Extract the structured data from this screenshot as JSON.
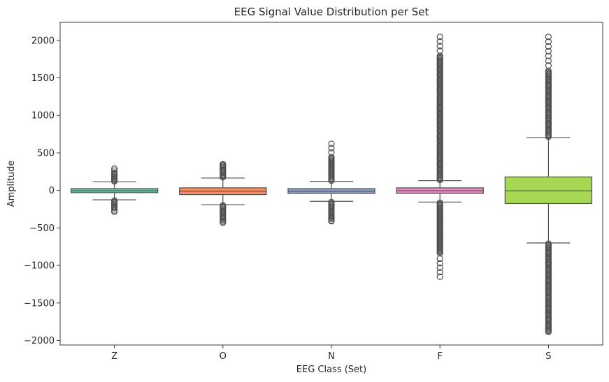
{
  "chart_data": {
    "type": "box",
    "title": "EEG Signal Value Distribution per Set",
    "xlabel": "EEG Class (Set)",
    "ylabel": "Amplitude",
    "ylim": [
      -2060,
      2240
    ],
    "yticks": [
      2000,
      1500,
      1000,
      500,
      0,
      -500,
      -1000,
      -1500,
      -2000
    ],
    "ytick_labels": [
      "2000",
      "1500",
      "1000",
      "500",
      "0",
      "−500",
      "−1000",
      "−1500",
      "−2000"
    ],
    "grid": false,
    "legend": "none",
    "categories": [
      "Z",
      "O",
      "N",
      "F",
      "S"
    ],
    "boxes": [
      {
        "category": "Z",
        "color": "#66c2a5",
        "q1": -30,
        "median": -5,
        "q3": 25,
        "whisker_low": -125,
        "whisker_high": 115,
        "outliers_high": {
          "from": 120,
          "to": 240,
          "max": 290
        },
        "outliers_low": {
          "from": -135,
          "to": -250,
          "min": -285
        }
      },
      {
        "category": "O",
        "color": "#fc8d62",
        "q1": -55,
        "median": -10,
        "q3": 35,
        "whisker_low": -190,
        "whisker_high": 165,
        "outliers_high": {
          "from": 175,
          "to": 330,
          "max": 350
        },
        "outliers_low": {
          "from": -200,
          "to": -400,
          "min": -430
        }
      },
      {
        "category": "N",
        "color": "#8da0cb",
        "q1": -40,
        "median": -10,
        "q3": 25,
        "whisker_low": -145,
        "whisker_high": 120,
        "outliers_high": {
          "from": 130,
          "to": 450,
          "max": 620
        },
        "outliers_low": {
          "from": -155,
          "to": -390,
          "min": -410
        }
      },
      {
        "category": "F",
        "color": "#e78ac3",
        "q1": -40,
        "median": -5,
        "q3": 35,
        "whisker_low": -155,
        "whisker_high": 130,
        "outliers_high": {
          "from": 140,
          "to": 1800,
          "max": 2047
        },
        "outliers_low": {
          "from": -165,
          "to": -850,
          "min": -1150
        }
      },
      {
        "category": "S",
        "color": "#a6d854",
        "q1": -175,
        "median": -5,
        "q3": 180,
        "whisker_low": -700,
        "whisker_high": 705,
        "outliers_high": {
          "from": 715,
          "to": 1600,
          "max": 2047
        },
        "outliers_low": {
          "from": -710,
          "to": -1860,
          "min": -1885
        }
      }
    ]
  }
}
